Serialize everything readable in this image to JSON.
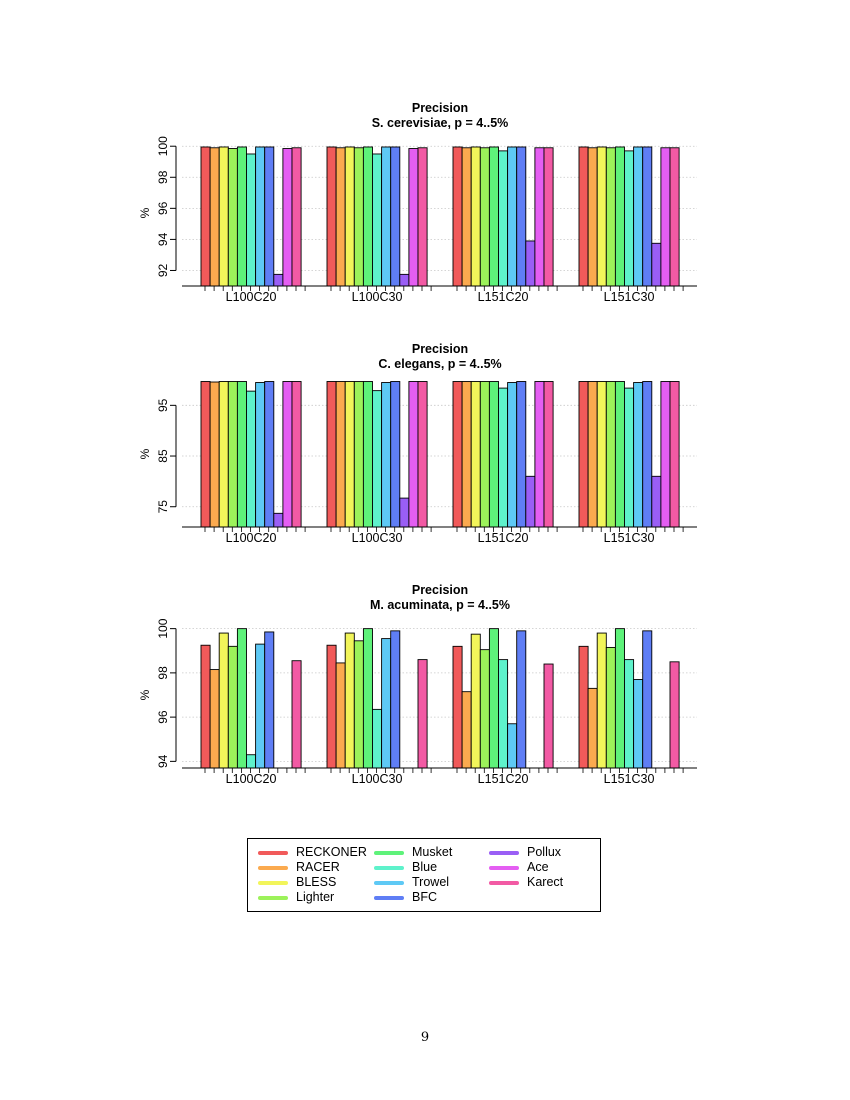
{
  "chart_data": [
    {
      "type": "bar",
      "title": "Precision",
      "subtitle": "S. cerevisiae, p = 4..5%",
      "xlabel": "",
      "ylabel": "%",
      "ylim": [
        91,
        100.4
      ],
      "yticks": [
        92,
        94,
        96,
        98,
        100
      ],
      "grid": true,
      "categories": [
        "L100C20",
        "L100C30",
        "L151C20",
        "L151C30"
      ],
      "series": [
        {
          "name": "RECKONER",
          "values": [
            99.95,
            99.95,
            99.95,
            99.95
          ]
        },
        {
          "name": "RACER",
          "values": [
            99.9,
            99.9,
            99.9,
            99.9
          ]
        },
        {
          "name": "BLESS",
          "values": [
            99.95,
            99.95,
            99.95,
            99.95
          ]
        },
        {
          "name": "Lighter",
          "values": [
            99.85,
            99.9,
            99.9,
            99.9
          ]
        },
        {
          "name": "Musket",
          "values": [
            99.95,
            99.95,
            99.95,
            99.95
          ]
        },
        {
          "name": "Blue",
          "values": [
            99.5,
            99.5,
            99.7,
            99.7
          ]
        },
        {
          "name": "Trowel",
          "values": [
            99.95,
            99.95,
            99.95,
            99.95
          ]
        },
        {
          "name": "BFC",
          "values": [
            99.95,
            99.95,
            99.95,
            99.95
          ]
        },
        {
          "name": "Pollux",
          "values": [
            91.75,
            91.75,
            93.9,
            93.75
          ]
        },
        {
          "name": "Ace",
          "values": [
            99.85,
            99.85,
            99.9,
            99.9
          ]
        },
        {
          "name": "Karect",
          "values": [
            99.9,
            99.9,
            99.9,
            99.9
          ]
        }
      ]
    },
    {
      "type": "bar",
      "title": "Precision",
      "subtitle": "C. elegans, p = 4..5%",
      "xlabel": "",
      "ylabel": "%",
      "ylim": [
        71,
        99.8
      ],
      "yticks": [
        75,
        85,
        95
      ],
      "grid": true,
      "categories": [
        "L100C20",
        "L100C30",
        "L151C20",
        "L151C30"
      ],
      "series": [
        {
          "name": "RECKONER",
          "values": [
            99.7,
            99.7,
            99.7,
            99.7
          ]
        },
        {
          "name": "RACER",
          "values": [
            99.6,
            99.7,
            99.7,
            99.7
          ]
        },
        {
          "name": "BLESS",
          "values": [
            99.7,
            99.7,
            99.7,
            99.7
          ]
        },
        {
          "name": "Lighter",
          "values": [
            99.7,
            99.7,
            99.7,
            99.7
          ]
        },
        {
          "name": "Musket",
          "values": [
            99.7,
            99.7,
            99.7,
            99.7
          ]
        },
        {
          "name": "Blue",
          "values": [
            97.8,
            97.9,
            98.4,
            98.4
          ]
        },
        {
          "name": "Trowel",
          "values": [
            99.5,
            99.5,
            99.5,
            99.5
          ]
        },
        {
          "name": "BFC",
          "values": [
            99.7,
            99.7,
            99.7,
            99.7
          ]
        },
        {
          "name": "Pollux",
          "values": [
            73.7,
            76.7,
            81,
            81
          ]
        },
        {
          "name": "Ace",
          "values": [
            99.7,
            99.7,
            99.7,
            99.7
          ]
        },
        {
          "name": "Karect",
          "values": [
            99.7,
            99.7,
            99.7,
            99.7
          ]
        }
      ]
    },
    {
      "type": "bar",
      "title": "Precision",
      "subtitle": "M. acuminata, p = 4..5%",
      "xlabel": "",
      "ylabel": "%",
      "ylim": [
        93.7,
        100.3
      ],
      "yticks": [
        94,
        96,
        98,
        100
      ],
      "grid": true,
      "categories": [
        "L100C20",
        "L100C30",
        "L151C20",
        "L151C30"
      ],
      "series": [
        {
          "name": "RECKONER",
          "values": [
            99.25,
            99.25,
            99.2,
            99.2
          ]
        },
        {
          "name": "RACER",
          "values": [
            98.15,
            98.45,
            97.15,
            97.3
          ]
        },
        {
          "name": "BLESS",
          "values": [
            99.8,
            99.8,
            99.75,
            99.8
          ]
        },
        {
          "name": "Lighter",
          "values": [
            99.2,
            99.45,
            99.05,
            99.15
          ]
        },
        {
          "name": "Musket",
          "values": [
            100,
            100,
            100,
            100
          ]
        },
        {
          "name": "Blue",
          "values": [
            94.3,
            96.35,
            98.6,
            98.6
          ]
        },
        {
          "name": "Trowel",
          "values": [
            99.3,
            99.55,
            95.7,
            97.7
          ]
        },
        {
          "name": "BFC",
          "values": [
            99.85,
            99.9,
            99.9,
            99.9
          ]
        },
        {
          "name": "Pollux",
          "values": [
            null,
            null,
            null,
            null
          ]
        },
        {
          "name": "Ace",
          "values": [
            null,
            null,
            null,
            null
          ]
        },
        {
          "name": "Karect",
          "values": [
            98.55,
            98.6,
            98.4,
            98.5
          ]
        }
      ]
    }
  ],
  "legend": [
    {
      "name": "RECKONER",
      "color": "#f15a5a"
    },
    {
      "name": "RACER",
      "color": "#fbaa4f"
    },
    {
      "name": "BLESS",
      "color": "#f2f55a"
    },
    {
      "name": "Lighter",
      "color": "#9cf25a"
    },
    {
      "name": "Musket",
      "color": "#5ef27a"
    },
    {
      "name": "Blue",
      "color": "#5ef2cb"
    },
    {
      "name": "Trowel",
      "color": "#5ec9f5"
    },
    {
      "name": "BFC",
      "color": "#5f7ef5"
    },
    {
      "name": "Pollux",
      "color": "#9a5ef5"
    },
    {
      "name": "Ace",
      "color": "#e45ef2"
    },
    {
      "name": "Karect",
      "color": "#f25aa4"
    }
  ],
  "page_number": "9"
}
